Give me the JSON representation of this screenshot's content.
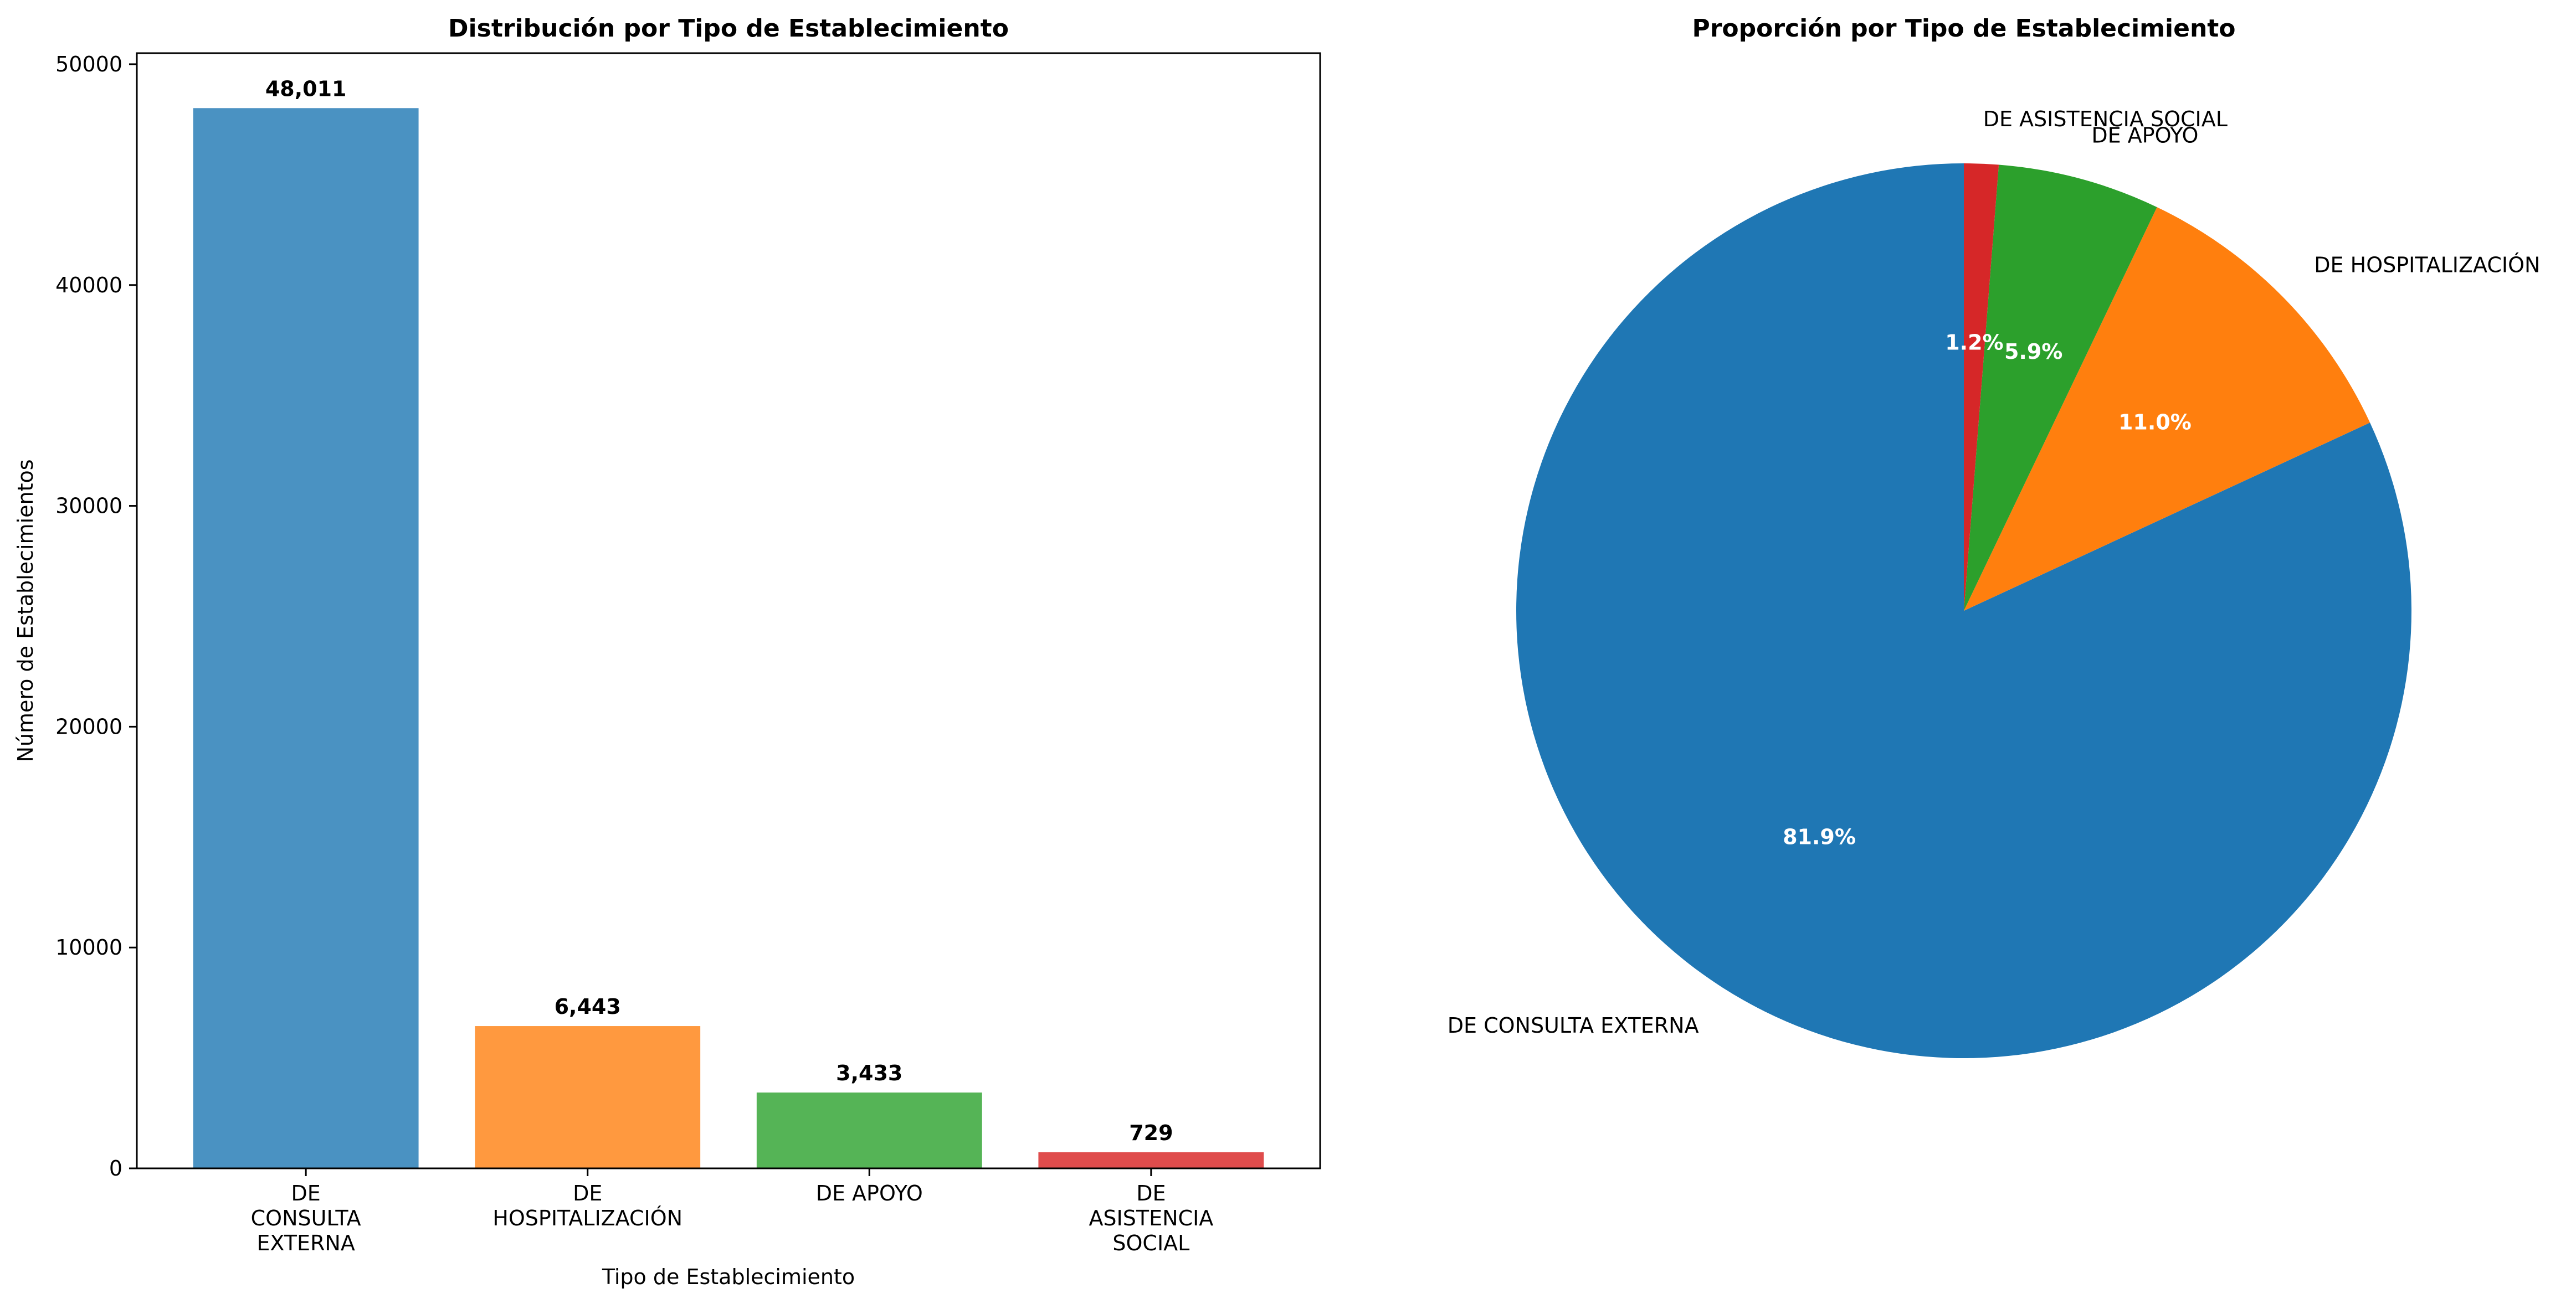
{
  "chart_data": [
    {
      "type": "bar",
      "title": "Distribución por Tipo de Establecimiento",
      "xlabel": "Tipo de Establecimiento",
      "ylabel": "Número de Establecimientos",
      "categories": [
        [
          "DE",
          "CONSULTA",
          "EXTERNA"
        ],
        [
          "DE",
          "HOSPITALIZACIÓN"
        ],
        [
          "DE APOYO"
        ],
        [
          "DE",
          "ASISTENCIA",
          "SOCIAL"
        ]
      ],
      "values": [
        48011,
        6443,
        3433,
        729
      ],
      "value_labels": [
        "48,011",
        "6,443",
        "3,433",
        "729"
      ],
      "colors": [
        "#4a92c2",
        "#ff993f",
        "#55b456",
        "#df4c4c"
      ],
      "ylim": [
        0,
        50500
      ],
      "yticks": [
        0,
        10000,
        20000,
        30000,
        40000,
        50000
      ],
      "ytick_labels": [
        "0",
        "10000",
        "20000",
        "30000",
        "40000",
        "50000"
      ],
      "grid": false
    },
    {
      "type": "pie",
      "title": "Proporción por Tipo de Establecimiento",
      "labels": [
        "DE CONSULTA EXTERNA",
        "DE HOSPITALIZACIÓN",
        "DE APOYO",
        "DE ASISTENCIA SOCIAL"
      ],
      "values": [
        48011,
        6443,
        3433,
        729
      ],
      "percent_labels": [
        "81.9%",
        "11.0%",
        "5.9%",
        "1.2%"
      ],
      "colors": [
        "#1f77b4",
        "#ff7f0e",
        "#2ca02c",
        "#d62728"
      ],
      "start_angle": 90,
      "direction": "counterclockwise"
    }
  ]
}
